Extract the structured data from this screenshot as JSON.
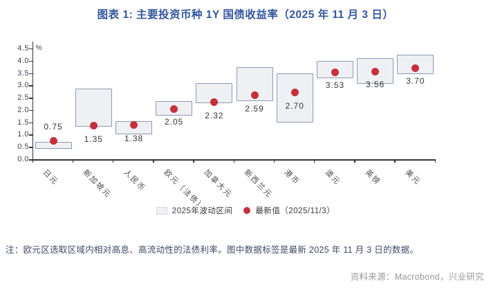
{
  "title": "图表 1: 主要投资币种 1Y 国债收益率（2025 年 11 月 3 日）",
  "note": "注：欧元区选取区域内相对高息、高流动性的法债利率。图中数据标签是最新 2025 年 11 月 3 日的数据。",
  "source": "资料来源：Macrobond，兴业研究",
  "colors": {
    "title": "#34569e",
    "axis": "#333333",
    "tick_label": "#3f4254",
    "x_label": "#4d4d4d",
    "value_label": "#333333",
    "box_fill": "#eef0f4",
    "box_border": "#8e99ad",
    "dot": "#c5303c",
    "legend_text": "#3a3a3a",
    "note": "#3e4a66",
    "source": "#999999"
  },
  "chart_data": {
    "type": "bar",
    "subtype": "floating-range-box-with-latest-value-dot",
    "title": "主要投资币种 1Y 国债收益率（2025 年 11 月 3 日）",
    "xlabel": "",
    "ylabel": "%",
    "y_unit": "%",
    "ylim": [
      0,
      4.5
    ],
    "ytick_step": 0.5,
    "grid": false,
    "legend_position": "bottom-center",
    "xtick_rotation_deg": 45,
    "categories": [
      "日元",
      "新加坡元",
      "人民币",
      "欧元（法债）",
      "加拿大元",
      "新西兰元",
      "港币",
      "澳元",
      "英镑",
      "美元"
    ],
    "series": [
      {
        "name": "2025年波动区间",
        "type": "range",
        "low": [
          0.42,
          1.32,
          1.0,
          1.76,
          2.27,
          2.35,
          1.5,
          3.3,
          3.07,
          3.45
        ],
        "high": [
          0.7,
          2.87,
          1.55,
          2.36,
          3.09,
          3.75,
          3.5,
          4.0,
          4.1,
          4.25
        ]
      },
      {
        "name": "最新值（2025/11/3）",
        "type": "dot",
        "values": [
          0.75,
          1.35,
          1.38,
          2.05,
          2.32,
          2.59,
          2.7,
          3.53,
          3.56,
          3.7
        ]
      }
    ],
    "value_labels": [
      "0.75",
      "1.35",
      "1.38",
      "2.05",
      "2.32",
      "2.59",
      "2.70",
      "3.53",
      "3.56",
      "3.70"
    ],
    "value_label_position": [
      "above",
      "below",
      "below",
      "below",
      "below",
      "below",
      "below",
      "below",
      "below",
      "below"
    ]
  }
}
